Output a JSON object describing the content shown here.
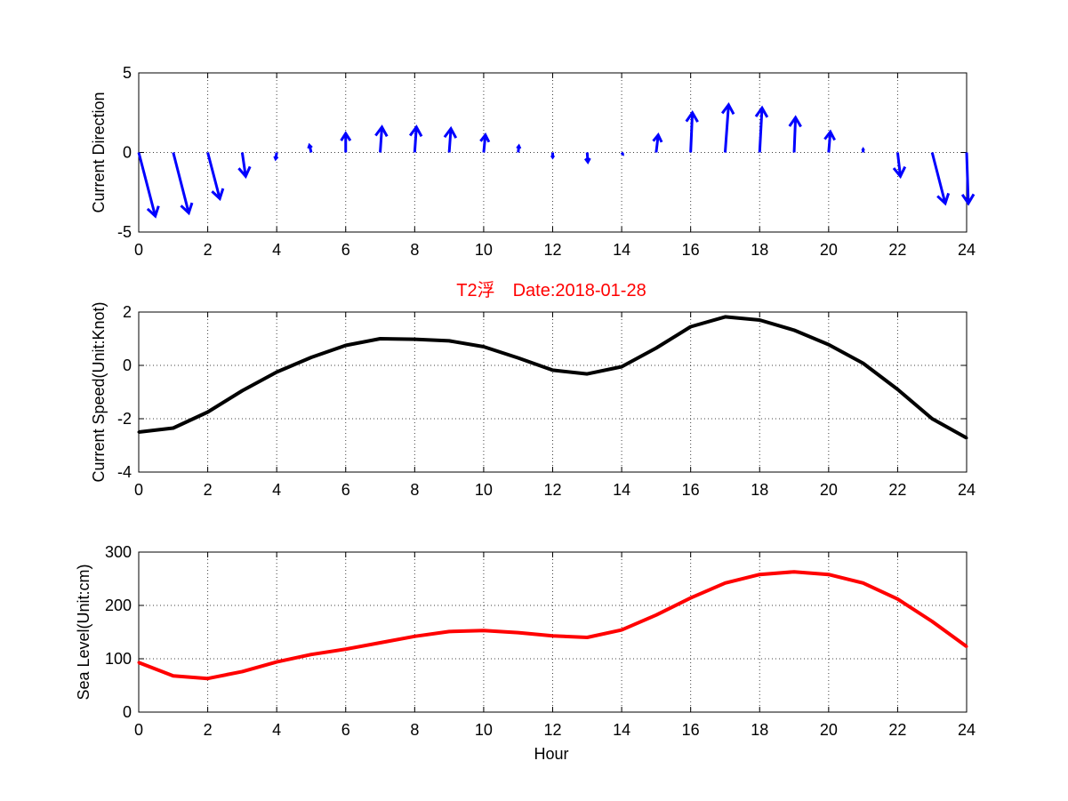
{
  "chart_data": [
    {
      "id": "direction",
      "type": "quiver",
      "ylabel": "Current Direction",
      "xlim": [
        0,
        24
      ],
      "ylim": [
        -5,
        5
      ],
      "xticks": [
        "0",
        "2",
        "4",
        "6",
        "8",
        "10",
        "12",
        "14",
        "16",
        "18",
        "20",
        "22",
        "24"
      ],
      "yticks": [
        "5",
        "0",
        "-5"
      ],
      "color": "#0000ff",
      "x": [
        0,
        1,
        2,
        3,
        4,
        5,
        6,
        7,
        8,
        9,
        10,
        11,
        12,
        13,
        14,
        15,
        16,
        17,
        18,
        19,
        20,
        21,
        22,
        23,
        24
      ],
      "u": [
        0.48,
        0.45,
        0.35,
        0.1,
        -0.03,
        -0.05,
        0.0,
        0.05,
        0.05,
        0.05,
        0.05,
        0.02,
        0.0,
        0.02,
        0.03,
        0.06,
        0.05,
        0.1,
        0.07,
        0.04,
        0.05,
        0.0,
        0.08,
        0.38,
        0.05
      ],
      "v": [
        -4.0,
        -3.8,
        -2.9,
        -1.5,
        -0.4,
        0.45,
        1.2,
        1.6,
        1.6,
        1.5,
        1.1,
        0.4,
        -0.3,
        -0.6,
        -0.1,
        1.1,
        2.5,
        3.0,
        2.8,
        2.2,
        1.3,
        0.2,
        -1.5,
        -3.2,
        -3.2
      ]
    },
    {
      "id": "speed",
      "type": "line",
      "title": "T2浮　Date:2018-01-28",
      "ylabel": "Current Speed(Unit:Knot)",
      "xlim": [
        0,
        24
      ],
      "ylim": [
        -4,
        2
      ],
      "xticks": [
        "0",
        "2",
        "4",
        "6",
        "8",
        "10",
        "12",
        "14",
        "16",
        "18",
        "20",
        "22",
        "24"
      ],
      "yticks": [
        "2",
        "0",
        "-2",
        "-4"
      ],
      "color": "#000000",
      "x": [
        0,
        1,
        2,
        3,
        4,
        5,
        6,
        7,
        8,
        9,
        10,
        11,
        12,
        13,
        14,
        15,
        16,
        17,
        18,
        19,
        20,
        21,
        22,
        23,
        24
      ],
      "y": [
        -2.5,
        -2.35,
        -1.75,
        -0.95,
        -0.25,
        0.3,
        0.75,
        1.0,
        0.98,
        0.92,
        0.7,
        0.28,
        -0.18,
        -0.32,
        -0.05,
        0.65,
        1.45,
        1.82,
        1.7,
        1.32,
        0.78,
        0.08,
        -0.9,
        -2.0,
        -2.72
      ]
    },
    {
      "id": "sealevel",
      "type": "line",
      "ylabel": "Sea Level(Unit:cm)",
      "xlabel": "Hour",
      "xlim": [
        0,
        24
      ],
      "ylim": [
        0,
        300
      ],
      "xticks": [
        "0",
        "2",
        "4",
        "6",
        "8",
        "10",
        "12",
        "14",
        "16",
        "18",
        "20",
        "22",
        "24"
      ],
      "yticks": [
        "300",
        "200",
        "100",
        "0"
      ],
      "color": "#ff0000",
      "x": [
        0,
        1,
        2,
        3,
        4,
        5,
        6,
        7,
        8,
        9,
        10,
        11,
        12,
        13,
        14,
        15,
        16,
        17,
        18,
        19,
        20,
        21,
        22,
        23,
        24
      ],
      "y": [
        93,
        68,
        63,
        76,
        94,
        108,
        118,
        130,
        142,
        151,
        153,
        149,
        143,
        140,
        154,
        182,
        214,
        242,
        258,
        263,
        258,
        242,
        212,
        170,
        123
      ]
    }
  ]
}
